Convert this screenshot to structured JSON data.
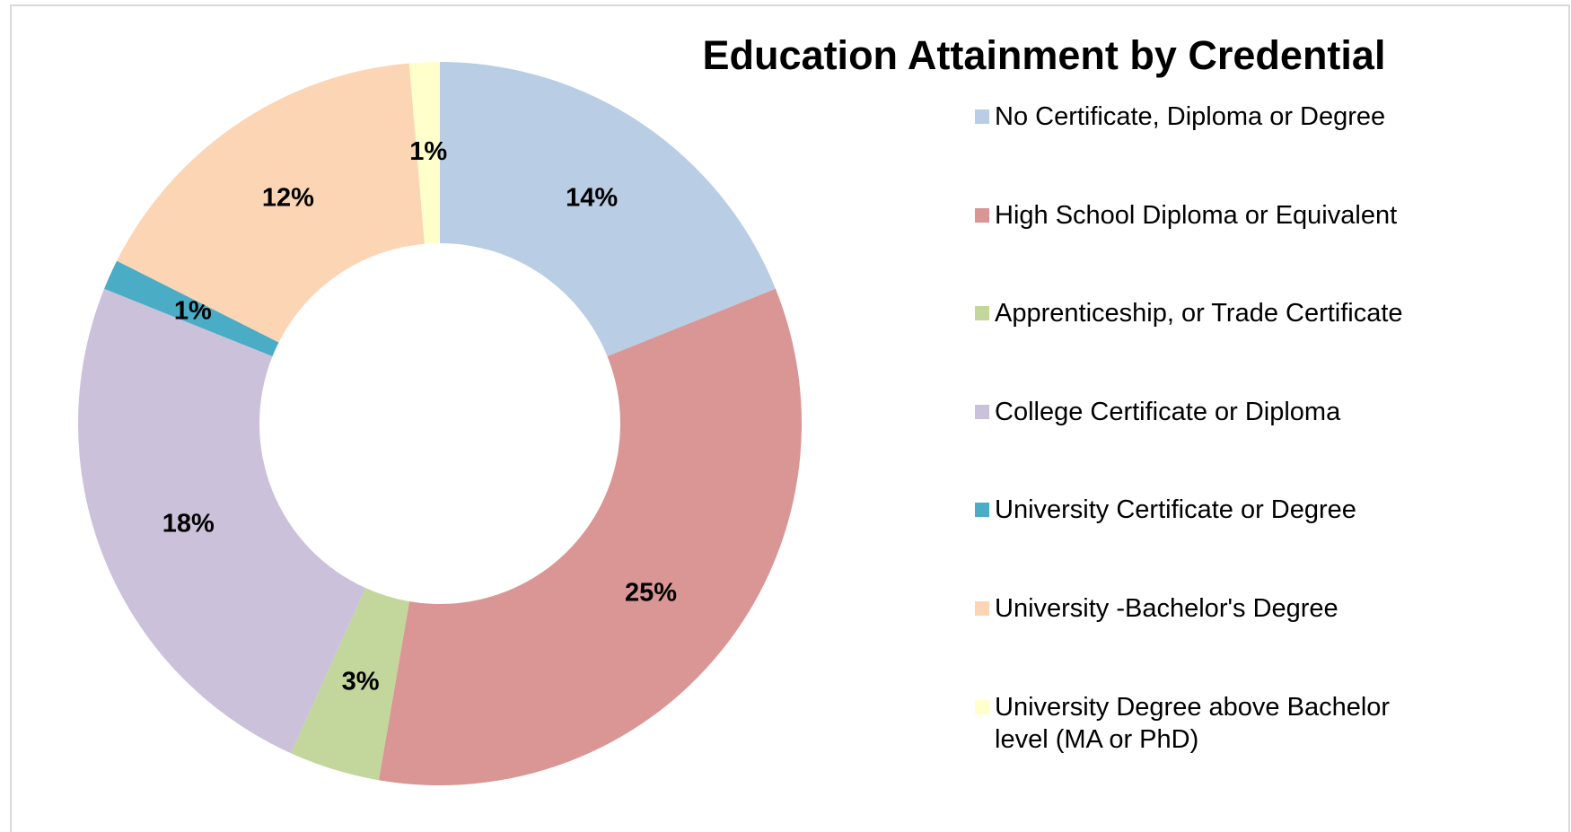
{
  "chart_data": {
    "type": "donut",
    "title": "Education Attainment by Credential",
    "categories": [
      "No Certificate, Diploma or Degree",
      "High School Diploma or Equivalent",
      "Apprenticeship, or Trade Certificate",
      "College Certificate or Diploma",
      "University Certificate or Degree",
      "University -Bachelor's Degree",
      "University Degree above Bachelor level (MA or PhD)"
    ],
    "values": [
      14,
      25,
      3,
      18,
      1,
      12,
      1
    ],
    "value_labels": [
      "14%",
      "25%",
      "3%",
      "18%",
      "1%",
      "12%",
      "1%"
    ],
    "colors": [
      "#b9cde5",
      "#d99694",
      "#c3d69b",
      "#ccc1da",
      "#4bacc6",
      "#fcd5b5",
      "#ffffcc"
    ]
  }
}
